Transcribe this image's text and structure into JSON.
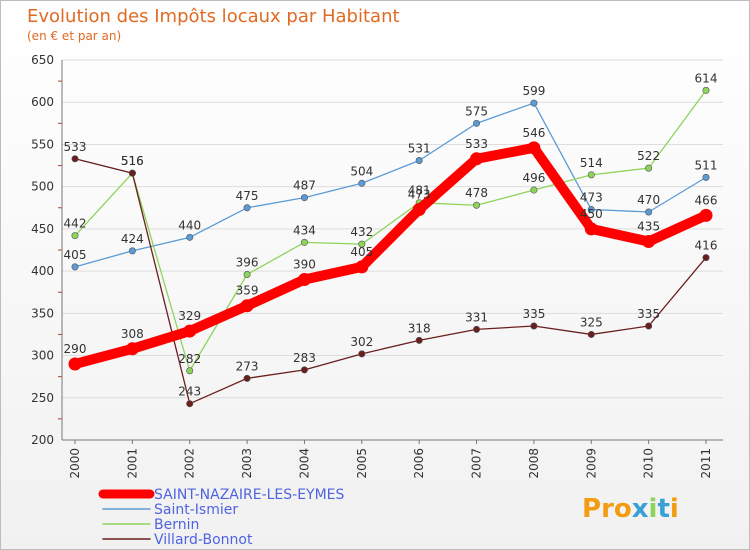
{
  "chart_data": {
    "type": "line",
    "title": "Evolution des Impôts locaux par Habitant",
    "subtitle": "(en € et par an)",
    "categories": [
      "2000",
      "2001",
      "2002",
      "2003",
      "2004",
      "2005",
      "2006",
      "2007",
      "2008",
      "2009",
      "2010",
      "2011"
    ],
    "ylim": [
      200,
      650
    ],
    "yticks": [
      200,
      250,
      300,
      350,
      400,
      450,
      500,
      550,
      600,
      650
    ],
    "grid": true,
    "series": [
      {
        "name": "Saint-Ismier",
        "color": "#5b9bd5",
        "values": [
          405,
          424,
          440,
          475,
          487,
          504,
          531,
          575,
          599,
          473,
          470,
          511
        ]
      },
      {
        "name": "Bernin",
        "color": "#8ed45a",
        "values": [
          442,
          516,
          282,
          396,
          434,
          432,
          481,
          478,
          496,
          514,
          522,
          614
        ]
      },
      {
        "name": "Villard-Bonnot",
        "color": "#6b1e1e",
        "values": [
          533,
          516,
          243,
          273,
          283,
          302,
          318,
          331,
          335,
          325,
          335,
          416
        ]
      },
      {
        "name": "SAINT-NAZAIRE-LES-EYMES",
        "color": "#ff0000",
        "values": [
          290,
          308,
          329,
          359,
          390,
          405,
          473,
          533,
          546,
          450,
          435,
          466
        ]
      }
    ],
    "legend_order": [
      "SAINT-NAZAIRE-LES-EYMES",
      "Saint-Ismier",
      "Bernin",
      "Villard-Bonnot"
    ],
    "legend_placement": "bottom-left",
    "legend_text_color": "#4f63e0"
  },
  "branding": {
    "logo_text": "Proxiti",
    "logo_colors": [
      "#f39c12",
      "#f39c12",
      "#f39c12",
      "#3aa0d8",
      "#8ed45a",
      "#3aa0d8",
      "#f39c12"
    ]
  }
}
